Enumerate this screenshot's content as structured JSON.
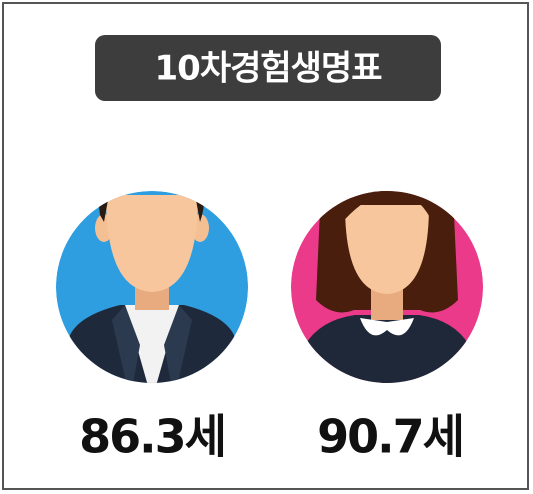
{
  "title": "10차경험생명표",
  "items": [
    {
      "label": "86.3세"
    },
    {
      "label": "90.7세"
    }
  ]
}
